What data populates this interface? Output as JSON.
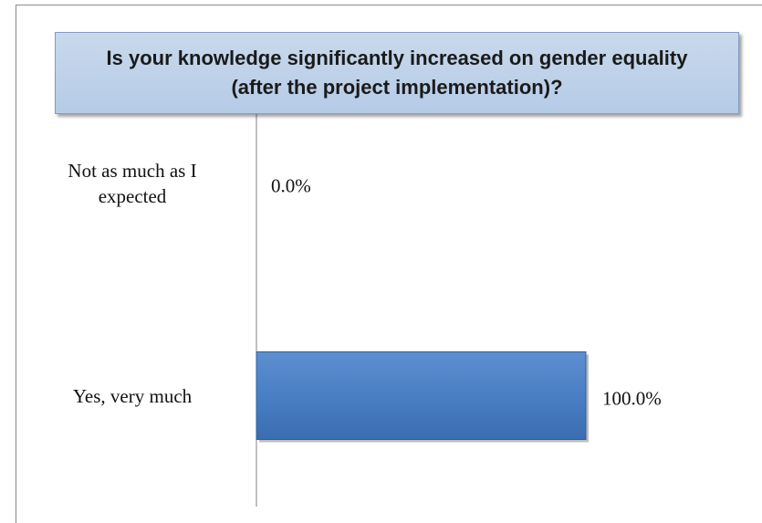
{
  "chart_data": {
    "type": "bar",
    "orientation": "horizontal",
    "title": "Is your knowledge significantly increased on gender equality (after the project implementation)?",
    "categories": [
      "Not as much as I expected",
      "Yes, very much"
    ],
    "values": [
      0,
      100
    ],
    "value_labels": [
      "0.0%",
      "100.0%"
    ],
    "color": "#4f81bd"
  }
}
